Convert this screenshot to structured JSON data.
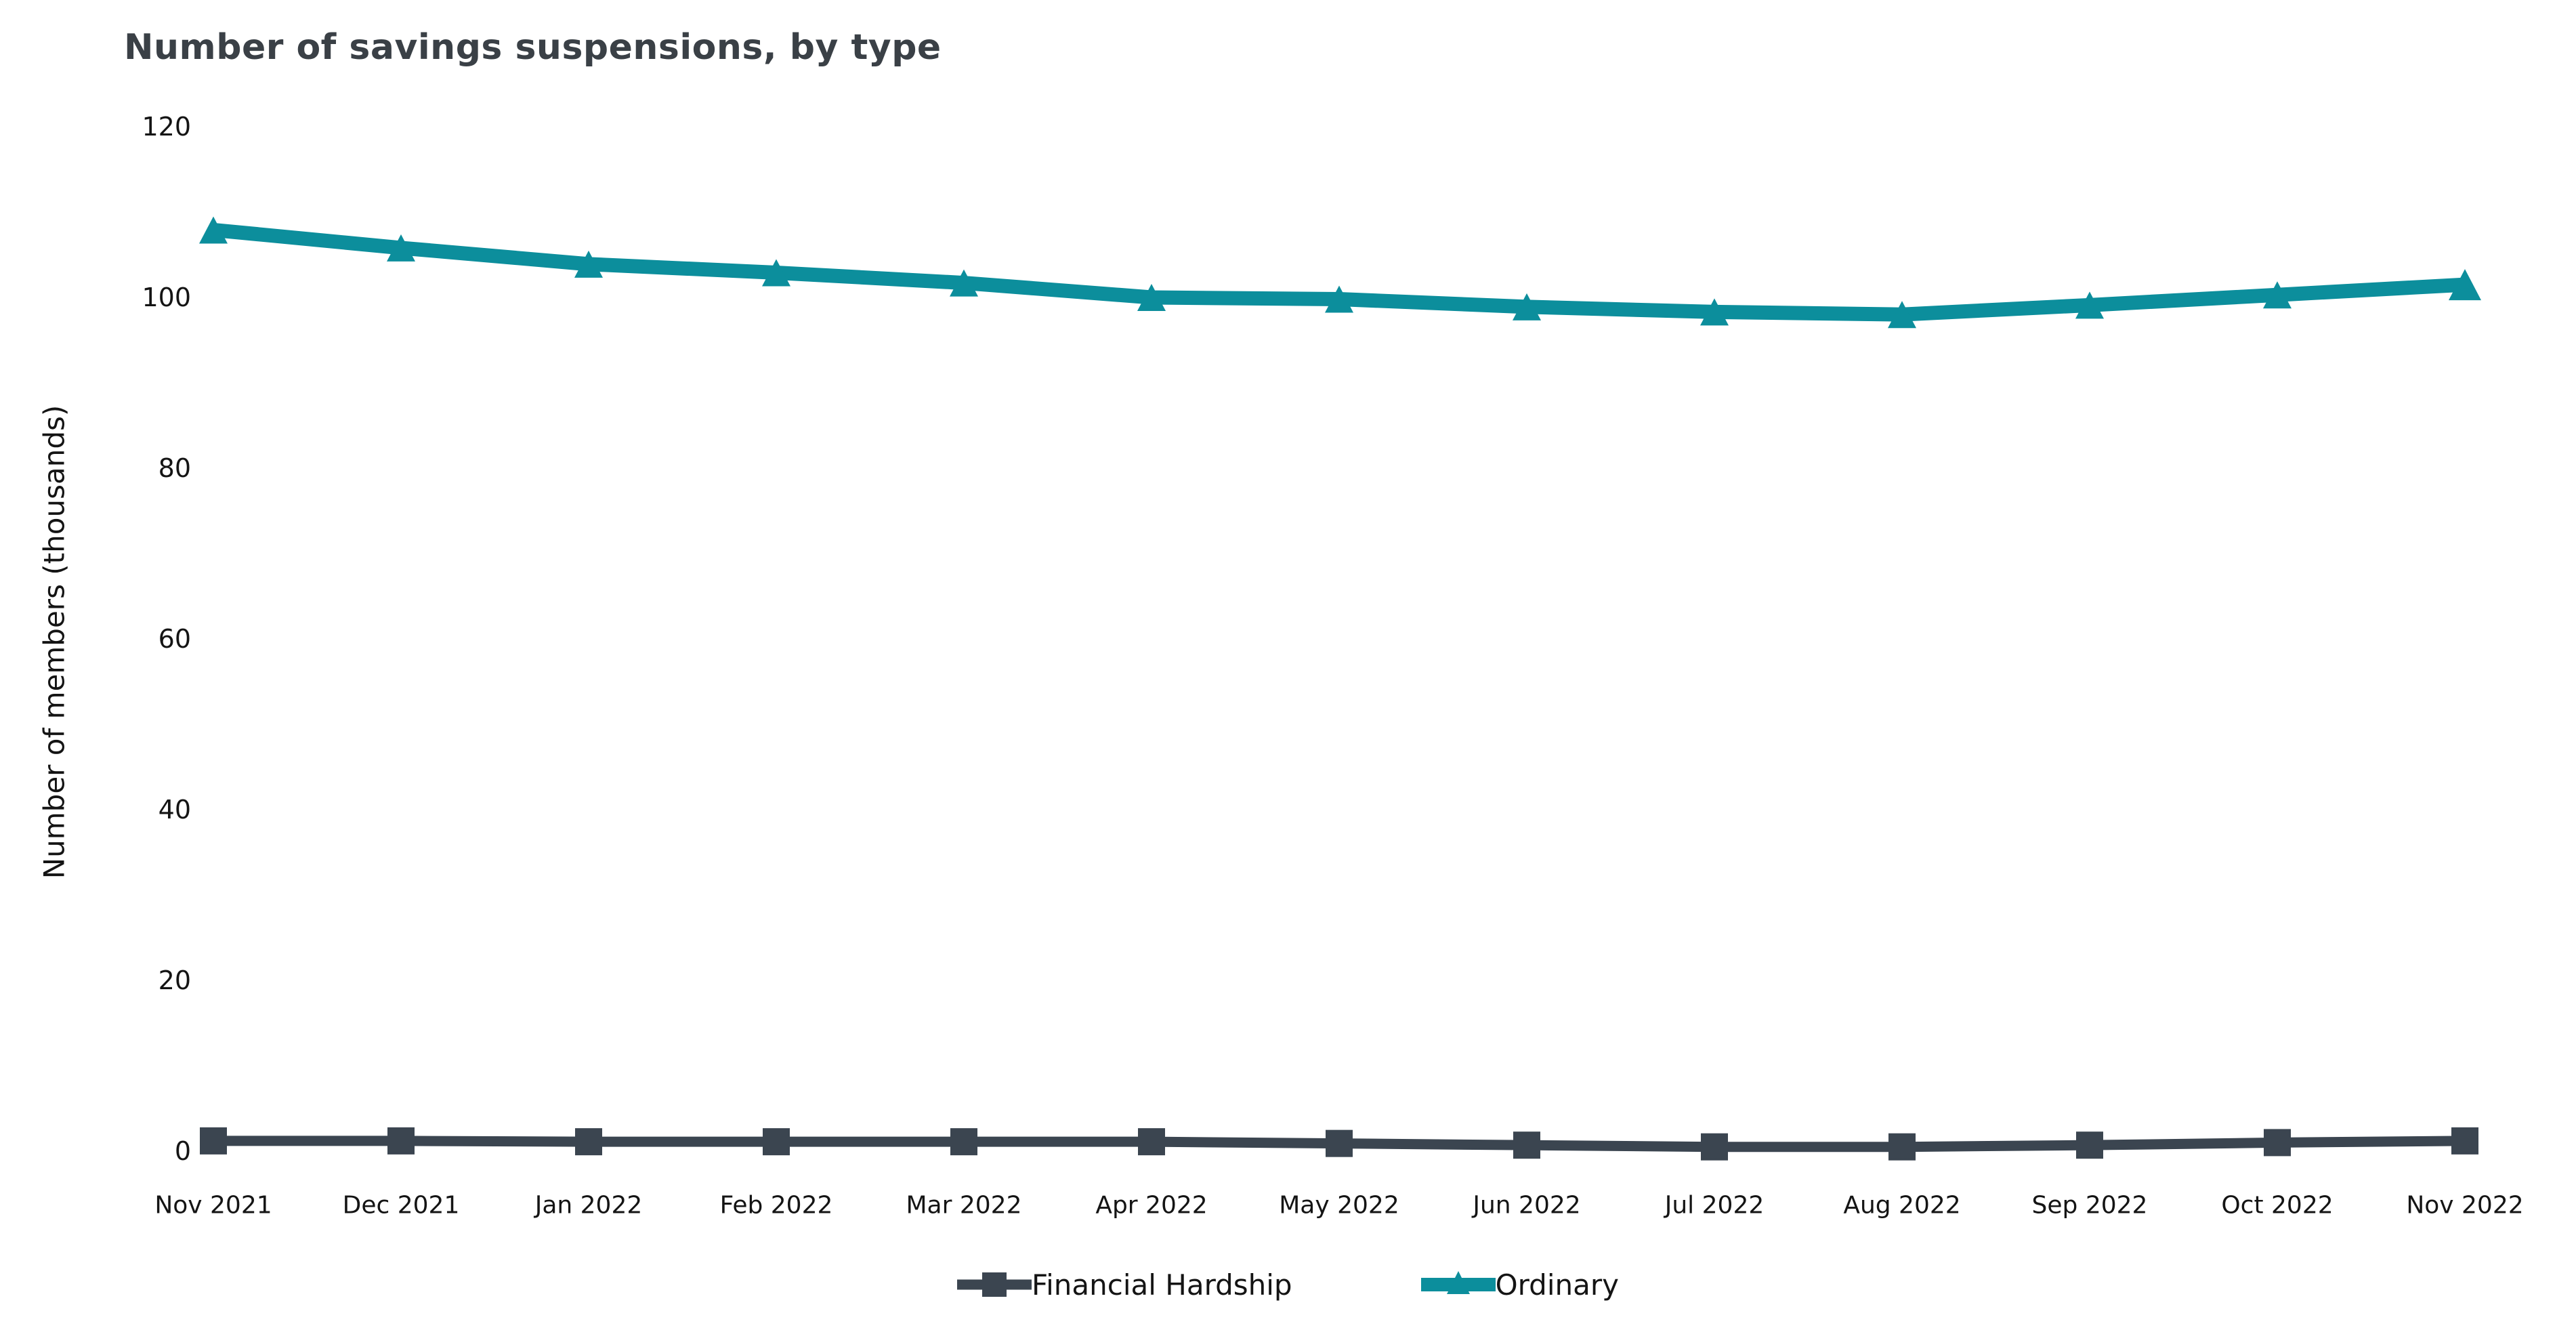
{
  "title": "Number of savings suspensions, by type",
  "y_axis": {
    "label": "Number of members (thousands)"
  },
  "colors": {
    "background": "#ffffff",
    "title_text": "#3a4046",
    "axis_text": "#141414",
    "financial_hardship": "#3b4550",
    "ordinary": "#0c8e9c"
  },
  "chart_data": {
    "type": "line",
    "title": "Number of savings suspensions, by type",
    "xlabel": "",
    "ylabel": "Number of members (thousands)",
    "categories": [
      "Nov 2021",
      "Dec 2021",
      "Jan 2022",
      "Feb 2022",
      "Mar 2022",
      "Apr 2022",
      "May 2022",
      "Jun 2022",
      "Jul 2022",
      "Aug 2022",
      "Sep 2022",
      "Oct 2022",
      "Nov 2022"
    ],
    "series": [
      {
        "name": "Financial Hardship",
        "color": "#3b4550",
        "marker": "square",
        "values": [
          1.2,
          1.2,
          1.1,
          1.1,
          1.1,
          1.1,
          0.9,
          0.7,
          0.5,
          0.5,
          0.7,
          1.0,
          1.2
        ]
      },
      {
        "name": "Ordinary",
        "color": "#0c8e9c",
        "marker": "triangle-up",
        "values": [
          107.9,
          105.8,
          103.9,
          102.9,
          101.7,
          100.0,
          99.8,
          98.9,
          98.3,
          98.0,
          99.1,
          100.3,
          101.5
        ]
      }
    ],
    "ylim": [
      0,
      120
    ],
    "yticks": [
      0,
      20,
      40,
      60,
      80,
      100,
      120
    ],
    "grid": false,
    "legend_position": "bottom"
  }
}
